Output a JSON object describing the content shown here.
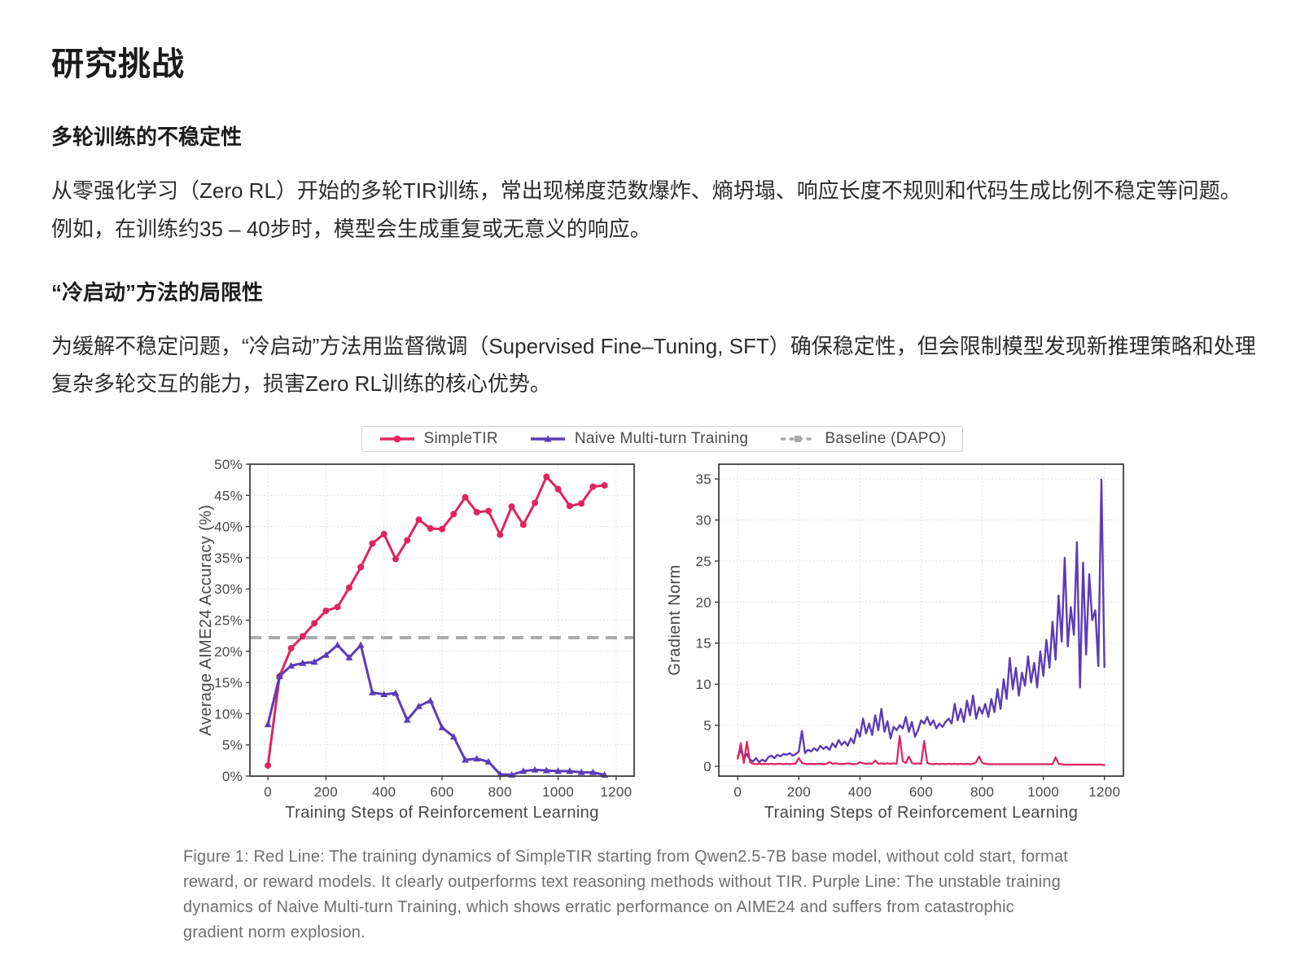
{
  "page": {
    "title": "研究挑战",
    "sections": [
      {
        "heading": "多轮训练的不稳定性",
        "body": "从零强化学习（Zero RL）开始的多轮TIR训练，常出现梯度范数爆炸、熵坍塌、响应长度不规则和代码生成比例不稳定等问题。例如，在训练约35 – 40步时，模型会生成重复或无意义的响应。"
      },
      {
        "heading": "“冷启动”方法的局限性",
        "body": "为缓解不稳定问题，“冷启动”方法用监督微调（Supervised Fine–Tuning, SFT）确保稳定性，但会限制模型发现新推理策略和处理复杂多轮交互的能力，损害Zero RL训练的核心优势。"
      }
    ]
  },
  "figure": {
    "legend": [
      {
        "label": "SimpleTIR",
        "color": "#E0245E",
        "marker": "circle",
        "dash": false
      },
      {
        "label": "Naive Multi-turn Training",
        "color": "#5B3CB8",
        "marker": "triangle",
        "dash": false
      },
      {
        "label": "Baseline (DAPO)",
        "color": "#ABABAB",
        "marker": "square",
        "dash": true
      }
    ],
    "caption": "Figure 1: Red Line: The training dynamics of SimpleTIR starting from Qwen2.5-7B base model, without cold start, format reward, or reward models. It clearly outperforms text reasoning methods without TIR. Purple Line: The unstable training dynamics of Naive Multi-turn Training, which shows erratic performance on AIME24 and suffers from catastrophic gradient norm explosion."
  },
  "chart_data": [
    {
      "type": "line",
      "title": "",
      "xlabel": "Training Steps of Reinforcement Learning",
      "ylabel": "Average AIME24 Accuracy (%)",
      "xlim": [
        -62,
        1262
      ],
      "ylim": [
        0,
        50
      ],
      "xticks": [
        0,
        200,
        400,
        600,
        800,
        1000,
        1200
      ],
      "yticks": [
        0,
        5,
        10,
        15,
        20,
        25,
        30,
        35,
        40,
        45,
        50
      ],
      "ytick_suffix": "%",
      "grid": true,
      "legend_position": "top-center",
      "baseline": {
        "label": "Baseline (DAPO)",
        "y": 22.2,
        "color": "#ABABAB"
      },
      "series": [
        {
          "name": "SimpleTIR",
          "color": "#E0245E",
          "marker": "circle",
          "line_width": 3,
          "x": [
            0,
            40,
            80,
            120,
            160,
            200,
            240,
            280,
            320,
            360,
            400,
            440,
            480,
            520,
            560,
            600,
            640,
            680,
            720,
            760,
            800,
            840,
            880,
            920,
            960,
            1000,
            1040,
            1080,
            1120,
            1160
          ],
          "y": [
            1.7,
            16.0,
            20.5,
            22.4,
            24.5,
            26.5,
            27.1,
            30.2,
            33.5,
            37.3,
            38.8,
            34.8,
            37.8,
            41.1,
            39.7,
            39.6,
            42.0,
            44.7,
            42.3,
            42.5,
            38.7,
            43.2,
            40.3,
            43.8,
            48.0,
            46.0,
            43.3,
            43.7,
            46.4,
            46.6
          ]
        },
        {
          "name": "Naive Multi-turn Training",
          "color": "#5B3CB8",
          "marker": "triangle",
          "line_width": 3,
          "x": [
            0,
            40,
            80,
            120,
            160,
            200,
            240,
            280,
            320,
            360,
            400,
            440,
            480,
            520,
            560,
            600,
            640,
            680,
            720,
            760,
            800,
            840,
            880,
            920,
            960,
            1000,
            1040,
            1080,
            1120,
            1160
          ],
          "y": [
            8.3,
            16.0,
            17.7,
            18.1,
            18.3,
            19.4,
            21.0,
            19.0,
            21.0,
            13.4,
            13.1,
            13.3,
            9.0,
            11.2,
            12.1,
            7.8,
            6.3,
            2.6,
            2.8,
            2.3,
            0.3,
            0.2,
            0.8,
            1.0,
            0.9,
            0.8,
            0.8,
            0.6,
            0.6,
            0.2
          ]
        }
      ]
    },
    {
      "type": "line",
      "title": "",
      "xlabel": "Training Steps of Reinforcement Learning",
      "ylabel": "Gradient Norm",
      "xlim": [
        -62,
        1262
      ],
      "ylim": [
        -1.2,
        36.8
      ],
      "xticks": [
        0,
        200,
        400,
        600,
        800,
        1000,
        1200
      ],
      "yticks": [
        0,
        5,
        10,
        15,
        20,
        25,
        30,
        35
      ],
      "ytick_suffix": "",
      "grid": true,
      "series": [
        {
          "name": "Naive Multi-turn Training",
          "color": "#5B3CB8",
          "marker": "none",
          "line_width": 2.4,
          "x0": 0,
          "dx": 10,
          "y": [
            1.2,
            2.0,
            0.9,
            1.5,
            0.8,
            0.6,
            1.0,
            0.5,
            0.8,
            0.6,
            1.1,
            1.3,
            1.0,
            1.4,
            1.2,
            1.5,
            1.4,
            1.6,
            1.3,
            1.5,
            1.8,
            4.3,
            1.6,
            2.0,
            1.8,
            2.2,
            1.9,
            2.5,
            2.1,
            2.4,
            2.0,
            2.8,
            2.3,
            3.2,
            2.6,
            3.0,
            2.5,
            3.4,
            2.8,
            4.5,
            3.6,
            5.8,
            4.0,
            5.2,
            3.8,
            6.2,
            4.4,
            7.0,
            4.2,
            5.5,
            3.4,
            4.8,
            4.4,
            5.0,
            4.6,
            6.0,
            4.2,
            5.4,
            3.6,
            4.4,
            5.6,
            5.2,
            6.0,
            5.0,
            5.6,
            4.6,
            5.2,
            4.8,
            5.4,
            5.8,
            5.2,
            7.6,
            5.6,
            7.0,
            5.4,
            8.0,
            6.2,
            8.6,
            5.8,
            7.2,
            6.4,
            7.6,
            6.0,
            8.2,
            6.6,
            9.4,
            7.0,
            10.6,
            8.2,
            13.2,
            9.4,
            12.0,
            8.6,
            11.4,
            9.8,
            13.4,
            10.2,
            12.6,
            9.6,
            14.0,
            11.0,
            15.4,
            12.0,
            17.6,
            13.0,
            20.8,
            15.2,
            25.4,
            14.6,
            19.4,
            16.0,
            27.3,
            9.6,
            24.8,
            13.6,
            23.4,
            17.8,
            19.0,
            12.2,
            34.9,
            12.1
          ]
        },
        {
          "name": "SimpleTIR",
          "color": "#E0245E",
          "marker": "none",
          "line_width": 2.2,
          "x0": 0,
          "dx": 10,
          "y": [
            0.9,
            2.8,
            0.4,
            3.0,
            0.5,
            0.3,
            0.25,
            0.3,
            0.25,
            0.3,
            0.25,
            0.3,
            0.25,
            0.3,
            0.3,
            0.25,
            0.3,
            0.25,
            0.3,
            0.35,
            1.0,
            0.4,
            0.3,
            0.25,
            0.3,
            0.25,
            0.3,
            0.3,
            0.25,
            0.3,
            0.5,
            0.3,
            0.35,
            0.3,
            0.25,
            0.3,
            0.35,
            0.3,
            0.25,
            0.3,
            0.5,
            0.35,
            0.3,
            0.35,
            0.3,
            0.7,
            0.3,
            0.35,
            0.3,
            0.35,
            0.3,
            0.35,
            0.3,
            3.7,
            0.6,
            0.4,
            1.2,
            0.4,
            0.3,
            0.35,
            0.3,
            3.1,
            0.4,
            0.3,
            0.25,
            0.3,
            0.25,
            0.3,
            0.25,
            0.3,
            0.25,
            0.3,
            0.25,
            0.3,
            0.25,
            0.3,
            0.25,
            0.3,
            0.5,
            1.2,
            0.4,
            0.3,
            0.25,
            0.25,
            0.25,
            0.25,
            0.25,
            0.25,
            0.25,
            0.25,
            0.25,
            0.25,
            0.25,
            0.25,
            0.25,
            0.25,
            0.25,
            0.25,
            0.25,
            0.25,
            0.25,
            0.25,
            0.25,
            0.25,
            1.1,
            0.3,
            0.25,
            0.2,
            0.2,
            0.2,
            0.2,
            0.2,
            0.2,
            0.2,
            0.2,
            0.2,
            0.2,
            0.2,
            0.2,
            0.2,
            0.15
          ]
        }
      ]
    }
  ]
}
